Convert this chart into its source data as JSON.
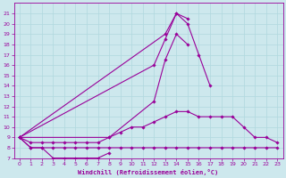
{
  "xlabel": "Windchill (Refroidissement éolien,°C)",
  "x": [
    0,
    1,
    2,
    3,
    4,
    5,
    6,
    7,
    8,
    9,
    10,
    11,
    12,
    13,
    14,
    15,
    16,
    17,
    18,
    19,
    20,
    21,
    22,
    23
  ],
  "line1": [
    9,
    8,
    8,
    7,
    7,
    7,
    7,
    7,
    7.5,
    null,
    null,
    null,
    null,
    null,
    null,
    null,
    null,
    null,
    null,
    null,
    null,
    null,
    null,
    null
  ],
  "line2": [
    9,
    8,
    8,
    8,
    8,
    8,
    8,
    8,
    8,
    8,
    8,
    8,
    8,
    8,
    8,
    8,
    8,
    8,
    8,
    8,
    8,
    8,
    8,
    8
  ],
  "line3": [
    9,
    8.5,
    8.5,
    8.5,
    8.5,
    8.5,
    8.5,
    8.5,
    9,
    9.5,
    10,
    10,
    10.5,
    11,
    11.5,
    11.5,
    11,
    11,
    11,
    11,
    10,
    9,
    9,
    8.5
  ],
  "line4": [
    9,
    null,
    null,
    null,
    null,
    null,
    null,
    null,
    9,
    null,
    null,
    null,
    12.5,
    16.5,
    19,
    18,
    null,
    null,
    null,
    null,
    null,
    null,
    null,
    null
  ],
  "line5": [
    9,
    null,
    null,
    null,
    null,
    null,
    null,
    null,
    null,
    null,
    null,
    null,
    null,
    19,
    21,
    20.5,
    null,
    null,
    null,
    null,
    null,
    null,
    null,
    null
  ],
  "line6": [
    9,
    null,
    null,
    null,
    null,
    null,
    null,
    null,
    null,
    null,
    null,
    null,
    16,
    18.5,
    21,
    20,
    17,
    14,
    null,
    null,
    null,
    null,
    null,
    null
  ],
  "ylim": [
    7,
    22
  ],
  "xlim": [
    -0.5,
    23.5
  ],
  "yticks": [
    7,
    8,
    9,
    10,
    11,
    12,
    13,
    14,
    15,
    16,
    17,
    18,
    19,
    20,
    21
  ],
  "xticks": [
    0,
    1,
    2,
    3,
    4,
    5,
    6,
    7,
    8,
    9,
    10,
    11,
    12,
    13,
    14,
    15,
    16,
    17,
    18,
    19,
    20,
    21,
    22,
    23
  ],
  "line_color": "#990099",
  "bg_color": "#cde8ed",
  "grid_color": "#b0d8de",
  "marker": "D",
  "markersize": 1.8,
  "lw": 0.8
}
